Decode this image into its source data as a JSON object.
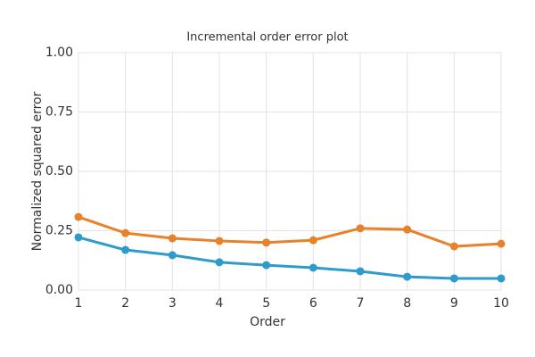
{
  "chart_data": {
    "type": "line",
    "title": "Incremental order error plot",
    "x_label": "Order",
    "y_label": "Normalized squared error",
    "x": [
      1,
      2,
      3,
      4,
      5,
      6,
      7,
      8,
      9,
      10
    ],
    "series": [
      {
        "color": "#e8822a",
        "values": [
          0.308,
          0.24,
          0.218,
          0.207,
          0.2,
          0.21,
          0.26,
          0.255,
          0.184,
          0.195
        ]
      },
      {
        "color": "#2e9bcc",
        "values": [
          0.222,
          0.169,
          0.147,
          0.117,
          0.105,
          0.094,
          0.079,
          0.056,
          0.049,
          0.049
        ]
      }
    ],
    "xlim": [
      1,
      10
    ],
    "xticks": [
      1,
      2,
      3,
      4,
      5,
      6,
      7,
      8,
      9,
      10
    ],
    "ylim": [
      0,
      1
    ],
    "yticks": [
      {
        "value": 0,
        "label": "0.00"
      },
      {
        "value": 0.25,
        "label": "0.25"
      },
      {
        "value": 0.5,
        "label": "0.50"
      },
      {
        "value": 0.75,
        "label": "0.75"
      },
      {
        "value": 1,
        "label": "1.00"
      }
    ],
    "grid": true
  }
}
